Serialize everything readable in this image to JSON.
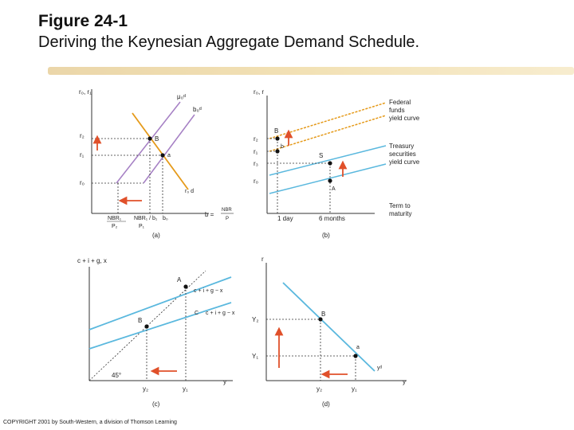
{
  "header": {
    "title": "Figure 24-1",
    "subtitle": "Deriving the Keynesian Aggregate Demand Schedule."
  },
  "panel_a": {
    "caption": "(a)",
    "y_axis_label": "r₀, r₁",
    "curve_left_label": "μ₀ᵈ",
    "curve_right_label": "b₀ᵈ",
    "demand_label": "r₀ d",
    "point_b": "B",
    "point_a": "a",
    "r_tick_1": "r₂",
    "r_tick_2": "r₁",
    "r_tick_3": "r₀",
    "x_tick_1": "NBR₁",
    "x_tick_1_denom": "P₂",
    "x_tick_2": "NBR₁ / b₁",
    "x_tick_2_sub": "P₁",
    "x_tick_3": "b₀",
    "eq_lhs": "b =",
    "eq_rhs_num": "NBR",
    "eq_rhs_den": "P"
  },
  "panel_b": {
    "caption": "(b)",
    "y_axis_label": "r₀, r",
    "label_federal": [
      "Federal",
      "funds",
      "yield curve"
    ],
    "label_treasury": [
      "Treasury",
      "securities",
      "yield curve"
    ],
    "label_term": [
      "Term to",
      "maturity"
    ],
    "point_B": "B",
    "point_b": "b",
    "point_S": "S",
    "point_A": "A",
    "tick_1": "r₂",
    "tick_2": "r₁",
    "tick_3": "r₃",
    "tick_4": "r₀",
    "x_tick_1": "1 day",
    "x_tick_2": "6 months"
  },
  "panel_c": {
    "caption": "(c)",
    "y_axis_label": "c + i + g, x",
    "upper_label": "c + i + g − x",
    "lower_label": "c + i + g − x",
    "point_A": "A",
    "point_B": "B",
    "point_C": "C",
    "angle_label": "45°",
    "x_axis_label": "y",
    "x_tick_1": "y₂",
    "x_tick_2": "y₁"
  },
  "panel_d": {
    "caption": "(d)",
    "y_axis_label": "r",
    "point_B": "B",
    "point_A": "a",
    "y_tick_1": "Y₂",
    "y_tick_2": "Y₁",
    "curve_label": "yᵈ",
    "x_axis_label": "y",
    "x_tick_1": "y₂",
    "x_tick_2": "y₁"
  },
  "colors": {
    "purple": "#a57fc4",
    "orange": "#e59a1a",
    "blue": "#5ab8de",
    "arrow": "#e0502a",
    "dashed": "#333333"
  },
  "footer": {
    "copyright": "COPYRIGHT 2001 by South-Western, a division of Thomson Learning"
  }
}
